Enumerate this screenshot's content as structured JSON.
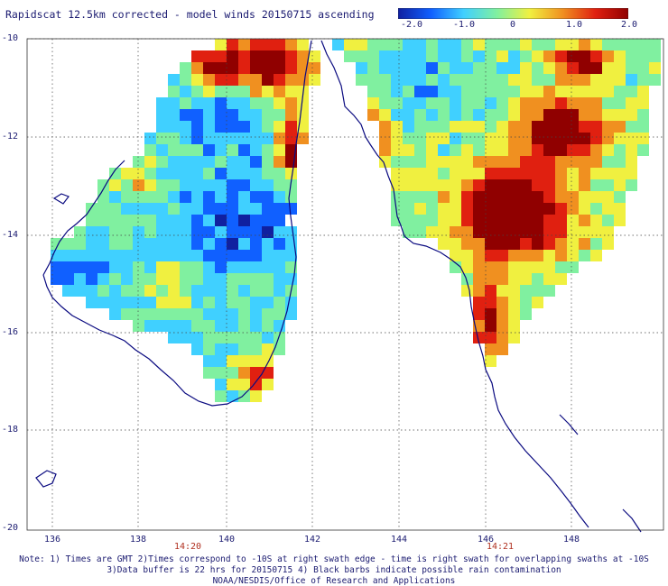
{
  "title": "Rapidscat 12.5km corrected - model winds 20150715 ascending",
  "colorbar": {
    "labels": [
      "-2.0",
      "-1.0",
      "0",
      "1.0",
      "2.0"
    ],
    "stops": [
      "#1020a0",
      "#1060ff",
      "#40d0ff",
      "#80f0a0",
      "#f0f040",
      "#f09020",
      "#e02010",
      "#900000"
    ]
  },
  "map": {
    "lat_labels": [
      "-10",
      "-12",
      "-14",
      "-16",
      "-18",
      "-20"
    ],
    "lon_labels": [
      "136",
      "138",
      "140",
      "142",
      "144",
      "146",
      "148"
    ],
    "times": [
      "14:20",
      "14:21"
    ],
    "colors": {
      "coast": "#0a0a80",
      "grid": "#444444"
    }
  },
  "notes": [
    "Note: 1) Times are GMT 2)Times correspond to -10S at right swath edge - time is right swath for overlapping swaths at -10S",
    "3)Data buffer is 22 hrs for 20150715 4) Black barbs indicate possible rain contamination",
    "NOAA/NESDIS/Office of Research and Applications"
  ]
}
